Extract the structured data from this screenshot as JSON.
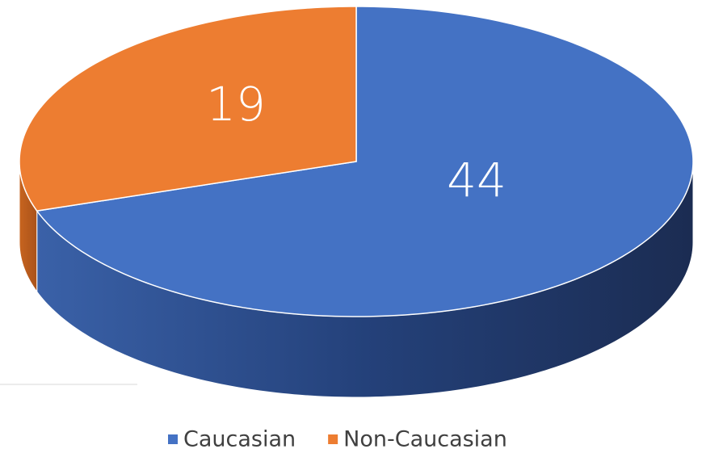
{
  "chart_data": {
    "type": "pie",
    "categories": [
      "Caucasian",
      "Non-Caucasian"
    ],
    "values": [
      44,
      19
    ],
    "colors": [
      "#4472c4",
      "#ed7d31"
    ],
    "legend": "bottom"
  }
}
